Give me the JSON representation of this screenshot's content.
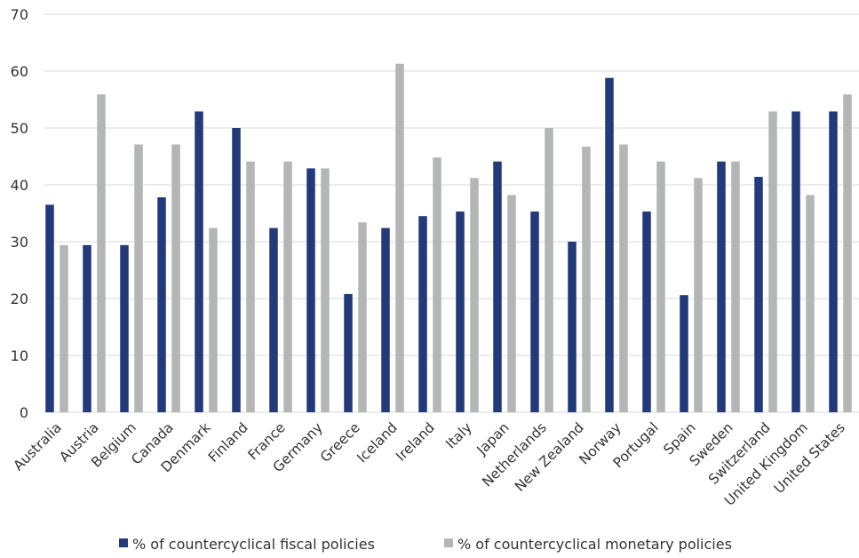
{
  "chart_data": {
    "type": "bar",
    "title": "",
    "xlabel": "",
    "ylabel": "",
    "ylim": [
      0,
      70
    ],
    "yticks": [
      0,
      10,
      20,
      30,
      40,
      50,
      60,
      70
    ],
    "grid": true,
    "legend_position": "bottom",
    "categories": [
      "Australia",
      "Austria",
      "Belgium",
      "Canada",
      "Denmark",
      "Finland",
      "France",
      "Germany",
      "Greece",
      "Iceland",
      "Ireland",
      "Italy",
      "Japan",
      "Netherlands",
      "New Zealand",
      "Norway",
      "Portugal",
      "Spain",
      "Sweden",
      "Switzerland",
      "United Kingdom",
      "United States"
    ],
    "series": [
      {
        "name": "% of countercyclical fiscal policies",
        "color": "#22397a",
        "values": [
          36.5,
          29.4,
          29.4,
          37.8,
          52.9,
          50.0,
          32.4,
          42.9,
          20.8,
          32.4,
          34.5,
          35.3,
          44.1,
          35.3,
          30.0,
          58.8,
          35.3,
          20.6,
          44.1,
          41.4,
          52.9,
          52.9
        ]
      },
      {
        "name": "% of countercyclical monetary policies",
        "color": "#b4b6b6",
        "values": [
          29.4,
          55.9,
          47.1,
          47.1,
          32.4,
          44.1,
          44.1,
          42.9,
          33.4,
          61.3,
          44.8,
          41.2,
          38.2,
          50.0,
          46.7,
          47.1,
          44.1,
          41.2,
          44.1,
          52.9,
          38.2,
          55.9
        ]
      }
    ]
  }
}
